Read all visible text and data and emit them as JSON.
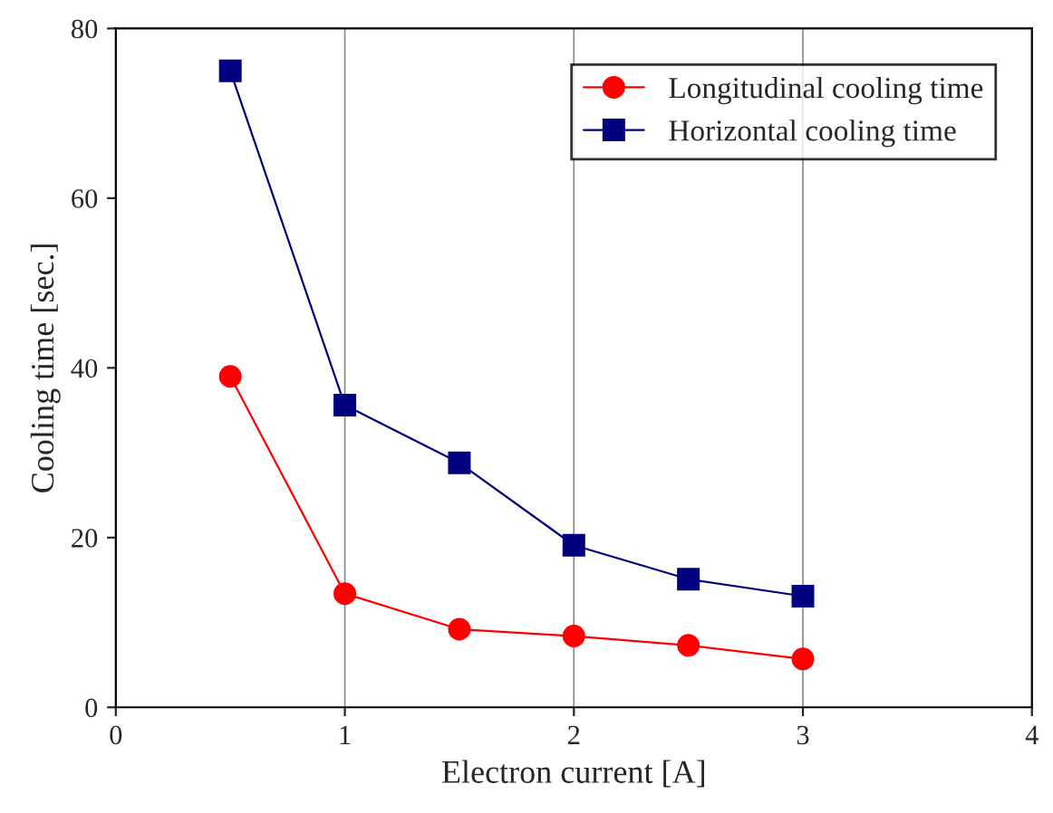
{
  "chart_data": {
    "type": "line",
    "xlabel": "Electron current [A]",
    "ylabel": "Cooling time [sec.]",
    "x": [
      0.5,
      1,
      1.5,
      2,
      2.5,
      3
    ],
    "series": [
      {
        "name": "Longitudinal cooling time",
        "color": "#ff0000",
        "marker": "circle",
        "values": [
          39,
          13.4,
          9.2,
          8.4,
          7.3,
          5.7
        ]
      },
      {
        "name": "Horizontal cooling time",
        "color": "#000080",
        "marker": "square",
        "values": [
          75,
          35.6,
          28.8,
          19.1,
          15.1,
          13.1
        ]
      }
    ],
    "xlim": [
      0,
      4
    ],
    "xticks": [
      0,
      1,
      2,
      3,
      4
    ],
    "ylim": [
      0,
      80
    ],
    "yticks": [
      0,
      20,
      40,
      60,
      80
    ],
    "grid": "x",
    "legend": "top right",
    "line_style": "solid"
  }
}
